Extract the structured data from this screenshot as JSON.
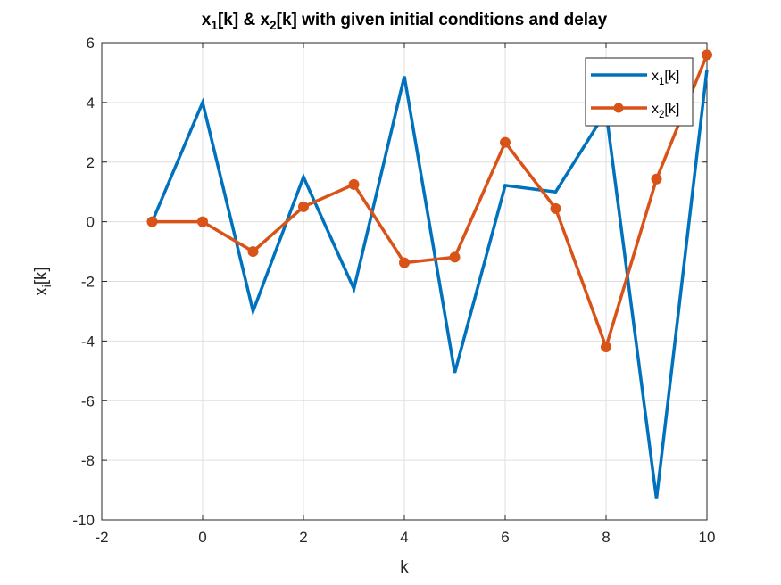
{
  "chart_data": {
    "type": "line",
    "title": {
      "parts": [
        {
          "text": "x",
          "sub": false
        },
        {
          "text": "1",
          "sub": true
        },
        {
          "text": "[k] & x",
          "sub": false
        },
        {
          "text": "2",
          "sub": true
        },
        {
          "text": "[k] with given initial conditions and delay",
          "sub": false
        }
      ]
    },
    "xlabel": "k",
    "ylabel": {
      "parts": [
        {
          "text": "x",
          "sub": false
        },
        {
          "text": "i",
          "sub": true
        },
        {
          "text": "[k]",
          "sub": false
        }
      ]
    },
    "xlim": [
      -2,
      10
    ],
    "ylim": [
      -10,
      6
    ],
    "xticks": [
      -2,
      0,
      2,
      4,
      6,
      8,
      10
    ],
    "yticks": [
      -10,
      -8,
      -6,
      -4,
      -2,
      0,
      2,
      4,
      6
    ],
    "xtick_labels": [
      "-2",
      "0",
      "2",
      "4",
      "6",
      "8",
      "10"
    ],
    "ytick_labels": [
      "-10",
      "-8",
      "-6",
      "-4",
      "-2",
      "0",
      "2",
      "4",
      "6"
    ],
    "grid": true,
    "legend_position": "top-right",
    "series": [
      {
        "name": {
          "parts": [
            {
              "text": "x",
              "sub": false
            },
            {
              "text": "1",
              "sub": true
            },
            {
              "text": "[k]",
              "sub": false
            }
          ]
        },
        "color": "#0072BD",
        "marker": "none",
        "x": [
          -1,
          0,
          1,
          2,
          3,
          4,
          5,
          6,
          7,
          8,
          9,
          10
        ],
        "values": [
          0,
          4,
          -3,
          1.5,
          -2.25,
          4.875,
          -5.0625,
          1.21875,
          1,
          3.7,
          -9.3,
          5.1
        ]
      },
      {
        "name": {
          "parts": [
            {
              "text": "x",
              "sub": false
            },
            {
              "text": "2",
              "sub": true
            },
            {
              "text": "[k]",
              "sub": false
            }
          ]
        },
        "color": "#D95319",
        "marker": "circle",
        "x": [
          -1,
          0,
          1,
          2,
          3,
          4,
          5,
          6,
          7,
          8,
          9,
          10
        ],
        "values": [
          0,
          0,
          -1,
          0.5,
          1.25,
          -1.375,
          -1.1875,
          2.66,
          0.44,
          -4.2,
          1.43,
          5.6
        ]
      }
    ]
  }
}
